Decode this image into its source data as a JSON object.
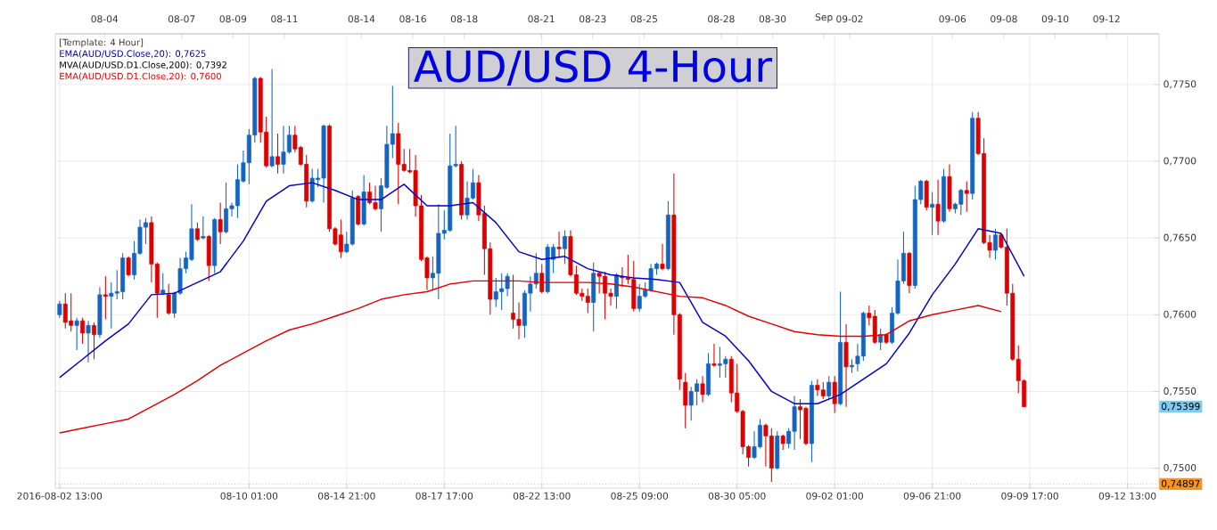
{
  "chart_data": {
    "type": "candlestick",
    "title": "AUD/USD 4-Hour",
    "legend_title": "[Template: 4 Hour]",
    "grid": true,
    "annotations": [
      "MVA(AUD/USD.D1.Close,200): 0,7392",
      "0,75399"
    ],
    "categories": [
      "2016-08-02 13:00",
      null,
      null,
      null,
      null,
      null,
      null,
      null,
      null,
      null,
      null,
      null,
      null,
      null,
      null,
      null,
      null,
      null,
      null,
      null,
      null,
      null,
      null,
      null,
      null,
      null,
      null,
      null,
      null,
      null,
      null,
      null,
      null,
      "08-10 01:00",
      null,
      null,
      null,
      null,
      null,
      null,
      null,
      null,
      null,
      null,
      null,
      null,
      null,
      null,
      null,
      null,
      "08-14 21:00",
      null,
      null,
      null,
      null,
      null,
      null,
      null,
      null,
      null,
      null,
      null,
      null,
      null,
      null,
      null,
      null,
      "08-17 17:00",
      null,
      null,
      null,
      null,
      null,
      null,
      null,
      null,
      null,
      null,
      null,
      null,
      null,
      null,
      null,
      null,
      "08-22 13:00",
      null,
      null,
      null,
      null,
      null,
      null,
      null,
      null,
      null,
      null,
      null,
      null,
      null,
      null,
      null,
      null,
      "08-25 09:00",
      null,
      null,
      null,
      null,
      null,
      null,
      null,
      null,
      null,
      null,
      null,
      null,
      null,
      null,
      null,
      null,
      "08-30 05:00",
      null,
      null,
      null,
      null,
      null,
      null,
      null,
      null,
      null,
      null,
      null,
      null,
      null,
      null,
      null,
      null,
      "09-02 01:00",
      null,
      null,
      null,
      null,
      null,
      null,
      null,
      null,
      null,
      null,
      null,
      null,
      null,
      null,
      null,
      null,
      "09-06 21:00",
      null,
      null,
      null,
      null,
      null,
      null,
      null,
      null,
      null,
      null,
      null,
      null,
      null,
      null,
      null,
      null,
      "09-09 17:00",
      null,
      null,
      null,
      null,
      null,
      null,
      null,
      null,
      null,
      null,
      null,
      null,
      null,
      null,
      null,
      null,
      "09-12 13:00",
      null,
      null,
      null,
      null,
      null
    ],
    "ohlc": [
      [
        0.76,
        0.7609,
        0.7598,
        0.7607
      ],
      [
        0.7607,
        0.7614,
        0.7591,
        0.7595
      ],
      [
        0.7596,
        0.7614,
        0.7589,
        0.7593
      ],
      [
        0.7593,
        0.7598,
        0.7577,
        0.7596
      ],
      [
        0.7596,
        0.7598,
        0.7581,
        0.7588
      ],
      [
        0.7588,
        0.7596,
        0.7569,
        0.7593
      ],
      [
        0.7593,
        0.7595,
        0.7571,
        0.7587
      ],
      [
        0.7587,
        0.7618,
        0.7585,
        0.7613
      ],
      [
        0.7613,
        0.7625,
        0.7597,
        0.7612
      ],
      [
        0.7612,
        0.7621,
        0.7591,
        0.7614
      ],
      [
        0.7614,
        0.7629,
        0.761,
        0.7615
      ],
      [
        0.7615,
        0.764,
        0.761,
        0.7637
      ],
      [
        0.7637,
        0.7638,
        0.7625,
        0.7626
      ],
      [
        0.7626,
        0.7648,
        0.7623,
        0.764
      ],
      [
        0.764,
        0.7662,
        0.7639,
        0.7657
      ],
      [
        0.7657,
        0.7663,
        0.7646,
        0.766
      ],
      [
        0.766,
        0.7664,
        0.7621,
        0.7633
      ],
      [
        0.7633,
        0.7634,
        0.7598,
        0.7614
      ],
      [
        0.7614,
        0.7627,
        0.7613,
        0.7616
      ],
      [
        0.7613,
        0.762,
        0.76,
        0.7601
      ],
      [
        0.7601,
        0.7615,
        0.7598,
        0.7614
      ],
      [
        0.7614,
        0.7637,
        0.7613,
        0.763
      ],
      [
        0.763,
        0.7641,
        0.7627,
        0.7637
      ],
      [
        0.7636,
        0.7672,
        0.7635,
        0.7656
      ],
      [
        0.7656,
        0.766,
        0.7648,
        0.7649
      ],
      [
        0.765,
        0.7664,
        0.7649,
        0.7651
      ],
      [
        0.7651,
        0.7652,
        0.7622,
        0.7632
      ],
      [
        0.7632,
        0.7663,
        0.7627,
        0.7662
      ],
      [
        0.7662,
        0.7673,
        0.7646,
        0.7654
      ],
      [
        0.7654,
        0.7686,
        0.7653,
        0.7669
      ],
      [
        0.7669,
        0.7673,
        0.7664,
        0.7671
      ],
      [
        0.7671,
        0.7698,
        0.7663,
        0.7688
      ],
      [
        0.7687,
        0.7707,
        0.7686,
        0.7699
      ],
      [
        0.7699,
        0.7721,
        0.7685,
        0.7717
      ],
      [
        0.7717,
        0.7755,
        0.7712,
        0.7754
      ],
      [
        0.7754,
        0.7755,
        0.7712,
        0.7719
      ],
      [
        0.7719,
        0.7729,
        0.7696,
        0.7697
      ],
      [
        0.7697,
        0.776,
        0.7696,
        0.7703
      ],
      [
        0.7703,
        0.7718,
        0.7692,
        0.7698
      ],
      [
        0.7698,
        0.7723,
        0.7692,
        0.7706
      ],
      [
        0.7706,
        0.7723,
        0.7705,
        0.7717
      ],
      [
        0.7717,
        0.7723,
        0.7706,
        0.7708
      ],
      [
        0.7709,
        0.771,
        0.7697,
        0.7698
      ],
      [
        0.7698,
        0.7704,
        0.767,
        0.7674
      ],
      [
        0.7674,
        0.7695,
        0.7673,
        0.7689
      ],
      [
        0.7688,
        0.7695,
        0.7683,
        0.7689
      ],
      [
        0.7689,
        0.7724,
        0.7673,
        0.7723
      ],
      [
        0.7723,
        0.7724,
        0.7654,
        0.7656
      ],
      [
        0.7656,
        0.7657,
        0.7645,
        0.7646
      ],
      [
        0.7652,
        0.7662,
        0.7637,
        0.7641
      ],
      [
        0.7641,
        0.7654,
        0.764,
        0.7646
      ],
      [
        0.7646,
        0.7681,
        0.7645,
        0.7676
      ],
      [
        0.7677,
        0.7678,
        0.7658,
        0.7659
      ],
      [
        0.7659,
        0.7691,
        0.7658,
        0.768
      ],
      [
        0.768,
        0.7686,
        0.7672,
        0.7673
      ],
      [
        0.7673,
        0.7684,
        0.7668,
        0.7669
      ],
      [
        0.7669,
        0.7689,
        0.7654,
        0.7684
      ],
      [
        0.7683,
        0.7723,
        0.7682,
        0.7711
      ],
      [
        0.7711,
        0.7749,
        0.7702,
        0.7718
      ],
      [
        0.7718,
        0.7725,
        0.7672,
        0.7698
      ],
      [
        0.7698,
        0.7708,
        0.7693,
        0.7694
      ],
      [
        0.7694,
        0.7708,
        0.7692,
        0.7693
      ],
      [
        0.7694,
        0.7704,
        0.7664,
        0.7671
      ],
      [
        0.7671,
        0.7678,
        0.7635,
        0.7636
      ],
      [
        0.7637,
        0.7638,
        0.7616,
        0.7624
      ],
      [
        0.7624,
        0.7638,
        0.7616,
        0.7627
      ],
      [
        0.7627,
        0.7672,
        0.761,
        0.7653
      ],
      [
        0.7653,
        0.7668,
        0.7649,
        0.7655
      ],
      [
        0.7655,
        0.7718,
        0.7654,
        0.7697
      ],
      [
        0.7697,
        0.7723,
        0.7696,
        0.7698
      ],
      [
        0.7698,
        0.77,
        0.7662,
        0.7665
      ],
      [
        0.7665,
        0.7687,
        0.7662,
        0.7676
      ],
      [
        0.7676,
        0.7695,
        0.7675,
        0.7686
      ],
      [
        0.7686,
        0.7691,
        0.7661,
        0.7665
      ],
      [
        0.7666,
        0.7671,
        0.7626,
        0.7643
      ],
      [
        0.7643,
        0.7647,
        0.76,
        0.761
      ],
      [
        0.761,
        0.7624,
        0.7605,
        0.7615
      ],
      [
        0.7615,
        0.7627,
        0.7603,
        0.7617
      ],
      [
        0.7617,
        0.7627,
        0.7612,
        0.7625
      ],
      [
        0.7601,
        0.7626,
        0.7591,
        0.7597
      ],
      [
        0.7597,
        0.7608,
        0.7584,
        0.7593
      ],
      [
        0.7593,
        0.7616,
        0.7585,
        0.7614
      ],
      [
        0.7614,
        0.7625,
        0.7602,
        0.762
      ],
      [
        0.762,
        0.764,
        0.7617,
        0.7627
      ],
      [
        0.7627,
        0.7633,
        0.7614,
        0.7615
      ],
      [
        0.7615,
        0.7646,
        0.7614,
        0.7644
      ],
      [
        0.7636,
        0.7646,
        0.7627,
        0.7644
      ],
      [
        0.7644,
        0.7654,
        0.7637,
        0.7643
      ],
      [
        0.7643,
        0.7655,
        0.7633,
        0.7651
      ],
      [
        0.7651,
        0.7655,
        0.7625,
        0.7626
      ],
      [
        0.7626,
        0.7632,
        0.7613,
        0.7614
      ],
      [
        0.7614,
        0.7617,
        0.7609,
        0.7612
      ],
      [
        0.7612,
        0.7617,
        0.7601,
        0.7608
      ],
      [
        0.7608,
        0.7634,
        0.7589,
        0.7627
      ],
      [
        0.7627,
        0.7628,
        0.7614,
        0.7625
      ],
      [
        0.7625,
        0.7628,
        0.7597,
        0.7614
      ],
      [
        0.7614,
        0.7617,
        0.7606,
        0.7612
      ],
      [
        0.7612,
        0.7627,
        0.7604,
        0.7626
      ],
      [
        0.7625,
        0.7631,
        0.7618,
        0.7624
      ],
      [
        0.7624,
        0.7639,
        0.762,
        0.7623
      ],
      [
        0.7623,
        0.7635,
        0.7602,
        0.7604
      ],
      [
        0.7604,
        0.762,
        0.7602,
        0.7612
      ],
      [
        0.7612,
        0.7621,
        0.7611,
        0.7616
      ],
      [
        0.7616,
        0.7633,
        0.7615,
        0.763
      ],
      [
        0.763,
        0.7634,
        0.7626,
        0.7633
      ],
      [
        0.7633,
        0.7646,
        0.7629,
        0.763
      ],
      [
        0.763,
        0.7674,
        0.7629,
        0.7665
      ],
      [
        0.7665,
        0.7692,
        0.7587,
        0.76
      ],
      [
        0.76,
        0.7601,
        0.7551,
        0.7558
      ],
      [
        0.7556,
        0.7562,
        0.7526,
        0.7541
      ],
      [
        0.7541,
        0.7553,
        0.7531,
        0.755
      ],
      [
        0.755,
        0.7558,
        0.7541,
        0.7555
      ],
      [
        0.7555,
        0.756,
        0.7543,
        0.7548
      ],
      [
        0.7548,
        0.7575,
        0.7547,
        0.7568
      ],
      [
        0.7568,
        0.7581,
        0.7566,
        0.7567
      ],
      [
        0.7567,
        0.7579,
        0.7559,
        0.7568
      ],
      [
        0.7568,
        0.7573,
        0.7559,
        0.7571
      ],
      [
        0.7571,
        0.7573,
        0.7543,
        0.7549
      ],
      [
        0.7549,
        0.7568,
        0.7536,
        0.7537
      ],
      [
        0.7537,
        0.7538,
        0.7509,
        0.7514
      ],
      [
        0.7514,
        0.7515,
        0.7501,
        0.7507
      ],
      [
        0.7507,
        0.7524,
        0.7506,
        0.7514
      ],
      [
        0.7514,
        0.7532,
        0.7513,
        0.7528
      ],
      [
        0.7528,
        0.7529,
        0.7501,
        0.7521
      ],
      [
        0.7521,
        0.7526,
        0.7491,
        0.75
      ],
      [
        0.75,
        0.7524,
        0.7499,
        0.7521
      ],
      [
        0.7521,
        0.7522,
        0.7512,
        0.7516
      ],
      [
        0.7516,
        0.7526,
        0.7513,
        0.7524
      ],
      [
        0.7524,
        0.7547,
        0.7512,
        0.754
      ],
      [
        0.754,
        0.7545,
        0.7519,
        0.7538
      ],
      [
        0.7539,
        0.754,
        0.7515,
        0.7516
      ],
      [
        0.7516,
        0.7557,
        0.7504,
        0.7554
      ],
      [
        0.7554,
        0.7558,
        0.7547,
        0.7551
      ],
      [
        0.7551,
        0.7556,
        0.7545,
        0.7547
      ],
      [
        0.7547,
        0.756,
        0.7545,
        0.7556
      ],
      [
        0.7556,
        0.756,
        0.7536,
        0.7542
      ],
      [
        0.7542,
        0.7615,
        0.7541,
        0.7582
      ],
      [
        0.7582,
        0.7594,
        0.754,
        0.7566
      ],
      [
        0.7566,
        0.7571,
        0.7562,
        0.7567
      ],
      [
        0.7568,
        0.7581,
        0.7563,
        0.7573
      ],
      [
        0.7573,
        0.7602,
        0.757,
        0.7601
      ],
      [
        0.7601,
        0.7606,
        0.7593,
        0.7598
      ],
      [
        0.7599,
        0.7603,
        0.7581,
        0.7582
      ],
      [
        0.7582,
        0.7591,
        0.7577,
        0.7587
      ],
      [
        0.7587,
        0.7588,
        0.7581,
        0.7582
      ],
      [
        0.7582,
        0.7605,
        0.7581,
        0.7601
      ],
      [
        0.7601,
        0.7636,
        0.76,
        0.7622
      ],
      [
        0.7622,
        0.7654,
        0.762,
        0.764
      ],
      [
        0.764,
        0.7641,
        0.7614,
        0.7619
      ],
      [
        0.7619,
        0.7684,
        0.7617,
        0.7675
      ],
      [
        0.7675,
        0.7688,
        0.7672,
        0.7687
      ],
      [
        0.7687,
        0.7688,
        0.7668,
        0.767
      ],
      [
        0.767,
        0.768,
        0.7652,
        0.7672
      ],
      [
        0.7672,
        0.7688,
        0.7652,
        0.7661
      ],
      [
        0.7661,
        0.7695,
        0.766,
        0.769
      ],
      [
        0.769,
        0.7698,
        0.7667,
        0.7669
      ],
      [
        0.7669,
        0.7673,
        0.7666,
        0.7672
      ],
      [
        0.7672,
        0.7682,
        0.7665,
        0.7681
      ],
      [
        0.7681,
        0.7687,
        0.7667,
        0.7679
      ],
      [
        0.7679,
        0.7732,
        0.7675,
        0.7728
      ],
      [
        0.7728,
        0.7732,
        0.7704,
        0.7705
      ],
      [
        0.7705,
        0.7715,
        0.7646,
        0.7647
      ],
      [
        0.7647,
        0.7652,
        0.7637,
        0.7642
      ],
      [
        0.7642,
        0.7656,
        0.7636,
        0.7652
      ],
      [
        0.7652,
        0.7653,
        0.7643,
        0.7644
      ],
      [
        0.7644,
        0.7656,
        0.7606,
        0.7614
      ],
      [
        0.7614,
        0.762,
        0.757,
        0.7571
      ],
      [
        0.7571,
        0.758,
        0.7549,
        0.7557
      ],
      [
        0.7557,
        0.7558,
        0.754,
        0.754
      ],
      null,
      null,
      null,
      null,
      null,
      null,
      null,
      null,
      null,
      null,
      null,
      null,
      null,
      null,
      null,
      null,
      null,
      null,
      null,
      null,
      null,
      null,
      null
    ],
    "colors": [
      "#1565c0",
      "#dd0000",
      "#dd0000",
      "#1565c0",
      "#dd0000",
      "#1565c0",
      "#dd0000",
      "#1565c0",
      "#dd0000",
      "#1565c0",
      "#1565c0",
      "#1565c0",
      "#dd0000",
      "#1565c0",
      "#1565c0",
      "#1565c0",
      "#dd0000",
      "#dd0000",
      "#1565c0",
      "#dd0000",
      "#1565c0",
      "#1565c0",
      "#1565c0",
      "#1565c0",
      "#dd0000",
      "#1565c0",
      "#dd0000",
      "#1565c0",
      "#dd0000",
      "#1565c0",
      "#1565c0",
      "#1565c0",
      "#1565c0",
      "#1565c0",
      "#1565c0",
      "#dd0000",
      "#dd0000",
      "#1565c0",
      "#dd0000",
      "#1565c0",
      "#1565c0",
      "#dd0000",
      "#dd0000",
      "#dd0000",
      "#1565c0",
      "#1565c0",
      "#1565c0",
      "#dd0000",
      "#dd0000",
      "#dd0000",
      "#1565c0",
      "#1565c0",
      "#dd0000",
      "#1565c0",
      "#dd0000",
      "#dd0000",
      "#1565c0",
      "#1565c0",
      "#1565c0",
      "#dd0000",
      "#dd0000",
      "#dd0000",
      "#dd0000",
      "#dd0000",
      "#dd0000",
      "#1565c0",
      "#1565c0",
      "#1565c0",
      "#1565c0",
      "#1565c0",
      "#dd0000",
      "#1565c0",
      "#1565c0",
      "#dd0000",
      "#dd0000",
      "#dd0000",
      "#1565c0",
      "#1565c0",
      "#1565c0",
      "#dd0000",
      "#dd0000",
      "#1565c0",
      "#1565c0",
      "#1565c0",
      "#dd0000",
      "#1565c0",
      "#1565c0",
      "#dd0000",
      "#1565c0",
      "#dd0000",
      "#dd0000",
      "#dd0000",
      "#dd0000",
      "#1565c0",
      "#dd0000",
      "#dd0000",
      "#dd0000",
      "#1565c0",
      "#dd0000",
      "#dd0000",
      "#dd0000",
      "#1565c0",
      "#1565c0",
      "#1565c0",
      "#1565c0",
      "#dd0000",
      "#1565c0",
      "#dd0000",
      "#dd0000",
      "#dd0000",
      "#1565c0",
      "#1565c0",
      "#dd0000",
      "#1565c0",
      "#dd0000",
      "#1565c0",
      "#1565c0",
      "#dd0000",
      "#dd0000",
      "#dd0000",
      "#dd0000",
      "#1565c0",
      "#1565c0",
      "#dd0000",
      "#dd0000",
      "#1565c0",
      "#dd0000",
      "#1565c0",
      "#1565c0",
      "#dd0000",
      "#dd0000",
      "#1565c0",
      "#dd0000",
      "#dd0000",
      "#1565c0",
      "#dd0000",
      "#1565c0",
      "#dd0000",
      "#1565c0",
      "#1565c0",
      "#1565c0",
      "#dd0000",
      "#dd0000",
      "#1565c0",
      "#dd0000",
      "#1565c0",
      "#1565c0",
      "#1565c0",
      "#dd0000",
      "#1565c0",
      "#1565c0",
      "#dd0000",
      "#1565c0",
      "#dd0000",
      "#1565c0",
      "#dd0000",
      "#1565c0",
      "#1565c0",
      "#dd0000",
      "#1565c0",
      "#dd0000",
      "#dd0000",
      "#dd0000",
      "#1565c0",
      "#dd0000",
      "#dd0000",
      "#dd0000",
      "#dd0000",
      "#dd0000",
      null,
      null,
      null,
      null,
      null,
      null,
      null,
      null,
      null,
      null,
      null,
      null,
      null,
      null,
      null,
      null,
      null,
      null,
      null,
      null,
      null,
      null,
      null
    ],
    "series": [
      {
        "type": "line",
        "name": "EMA(AUD/USD.Close,20): 0,7625",
        "color": "#0000cc",
        "values": [
          0.7559,
          null,
          null,
          null,
          0.7571,
          null,
          null,
          null,
          0.7583,
          null,
          null,
          null,
          0.7594,
          null,
          null,
          null,
          0.7613,
          null,
          null,
          null,
          0.7614,
          null,
          null,
          null,
          0.7621,
          null,
          null,
          null,
          0.7628,
          null,
          null,
          null,
          0.7648,
          null,
          null,
          null,
          0.7674,
          null,
          null,
          null,
          0.7684,
          null,
          null,
          null,
          0.7686,
          null,
          null,
          null,
          0.7681,
          null,
          null,
          null,
          0.7675,
          null,
          null,
          null,
          0.7675,
          null,
          null,
          null,
          0.7685,
          null,
          null,
          null,
          0.7671,
          null,
          null,
          null,
          0.7671,
          null,
          null,
          null,
          0.7673,
          null,
          null,
          null,
          0.766,
          null,
          null,
          null,
          0.7641,
          null,
          null,
          null,
          0.7636,
          null,
          null,
          null,
          0.7638,
          null,
          null,
          null,
          0.763,
          null,
          null,
          null,
          0.7626,
          null,
          null,
          null,
          0.7624,
          null,
          null,
          null,
          0.7623,
          null,
          null,
          null,
          0.7621,
          null,
          null,
          null,
          0.7595,
          null,
          null,
          null,
          0.7586,
          null,
          null,
          null,
          0.757,
          null,
          null,
          null,
          0.755,
          null,
          null,
          null,
          0.7542,
          null,
          null,
          null,
          0.7542,
          null,
          null,
          null,
          0.7548,
          null,
          null,
          null,
          0.7558,
          null,
          null,
          null,
          0.7568,
          null,
          null,
          null,
          0.7588,
          null,
          null,
          null,
          0.7613,
          null,
          null,
          null,
          0.7633,
          null,
          null,
          null,
          0.7656,
          null,
          null,
          null,
          0.7653,
          null,
          null,
          null,
          0.7625,
          null,
          null,
          null,
          null,
          null,
          null,
          null,
          null,
          null,
          null,
          null,
          null,
          null,
          null,
          null,
          null,
          null,
          null,
          null,
          null,
          null,
          null,
          null
        ]
      },
      {
        "type": "line",
        "name": "EMA(AUD/USD.D1.Close,20): 0,7600",
        "color": "#e00000",
        "values": [
          0.7523,
          null,
          null,
          null,
          0.7526,
          null,
          null,
          null,
          0.7529,
          null,
          null,
          null,
          0.7532,
          null,
          null,
          null,
          0.754,
          null,
          null,
          null,
          0.7548,
          null,
          null,
          null,
          0.7557,
          null,
          null,
          null,
          0.7567,
          null,
          null,
          null,
          0.7575,
          null,
          null,
          null,
          0.7583,
          null,
          null,
          null,
          0.759,
          null,
          null,
          null,
          0.7594,
          null,
          null,
          null,
          0.7599,
          null,
          null,
          null,
          0.7604,
          null,
          null,
          null,
          0.761,
          null,
          null,
          null,
          0.7613,
          null,
          null,
          null,
          0.7615,
          null,
          null,
          null,
          0.762,
          null,
          null,
          null,
          0.7622,
          null,
          null,
          null,
          0.7622,
          null,
          null,
          null,
          0.7622,
          null,
          null,
          null,
          0.7621,
          null,
          null,
          null,
          0.7621,
          null,
          null,
          null,
          0.7621,
          null,
          null,
          null,
          0.762,
          null,
          null,
          null,
          0.7618,
          null,
          null,
          null,
          0.7615,
          null,
          null,
          null,
          0.7612,
          null,
          null,
          null,
          0.7611,
          null,
          null,
          null,
          0.7606,
          null,
          null,
          null,
          0.7599,
          null,
          null,
          null,
          0.7594,
          null,
          null,
          null,
          0.7589,
          null,
          null,
          null,
          0.7587,
          null,
          null,
          null,
          0.7586,
          null,
          null,
          null,
          0.7586,
          null,
          null,
          null,
          0.7587,
          null,
          null,
          null,
          0.7596,
          null,
          null,
          null,
          0.76,
          null,
          null,
          null,
          0.7603,
          null,
          null,
          null,
          0.7606,
          null,
          null,
          null,
          0.7602,
          null,
          null,
          null,
          null,
          null,
          null,
          null,
          null,
          null,
          null,
          null,
          null,
          null,
          null,
          null,
          null,
          null,
          null,
          null,
          null,
          null,
          null,
          null,
          null,
          null,
          null,
          null
        ]
      }
    ],
    "ylim": [
      0.7487,
      0.7783
    ],
    "yticks": [
      {
        "value": 0.75,
        "label": "0,7500"
      },
      {
        "value": 0.755,
        "label": "0,7550"
      },
      {
        "value": 0.76,
        "label": "0,7600"
      },
      {
        "value": 0.765,
        "label": "0,7650"
      },
      {
        "value": 0.77,
        "label": "0,7700"
      },
      {
        "value": 0.775,
        "label": "0,7750"
      }
    ],
    "x2lim": [
      "2016-08-02T02:00",
      "2016-09-14T01:00"
    ],
    "x2ticks": [
      {
        "value": "2016-08-04",
        "label": "08-04"
      },
      {
        "value": "2016-08-07",
        "label": "08-07"
      },
      {
        "value": "2016-08-09",
        "label": "08-09"
      },
      {
        "value": "2016-08-11",
        "label": "08-11"
      },
      {
        "value": "2016-08-14",
        "label": "08-14"
      },
      {
        "value": "2016-08-16",
        "label": "08-16"
      },
      {
        "value": "2016-08-18",
        "label": "08-18"
      },
      {
        "value": "2016-08-21",
        "label": "08-21"
      },
      {
        "value": "2016-08-23",
        "label": "08-23"
      },
      {
        "value": "2016-08-25",
        "label": "08-25"
      },
      {
        "value": "2016-08-28",
        "label": "08-28"
      },
      {
        "value": "2016-08-30",
        "label": "08-30"
      },
      {
        "value": "2016-09-01",
        "label": "Sep"
      },
      {
        "value": "2016-09-02",
        "label": "09-02"
      },
      {
        "value": "2016-09-06",
        "label": "09-06"
      },
      {
        "value": "2016-09-08",
        "label": "09-08"
      },
      {
        "value": "2016-09-10",
        "label": "09-10"
      },
      {
        "value": "2016-09-12",
        "label": "09-12"
      }
    ],
    "ref_lines": [
      {
        "axis": "y",
        "value": 0.74897,
        "label": "0,74897",
        "color": "#f7941d",
        "line_style": "dotted"
      }
    ]
  }
}
